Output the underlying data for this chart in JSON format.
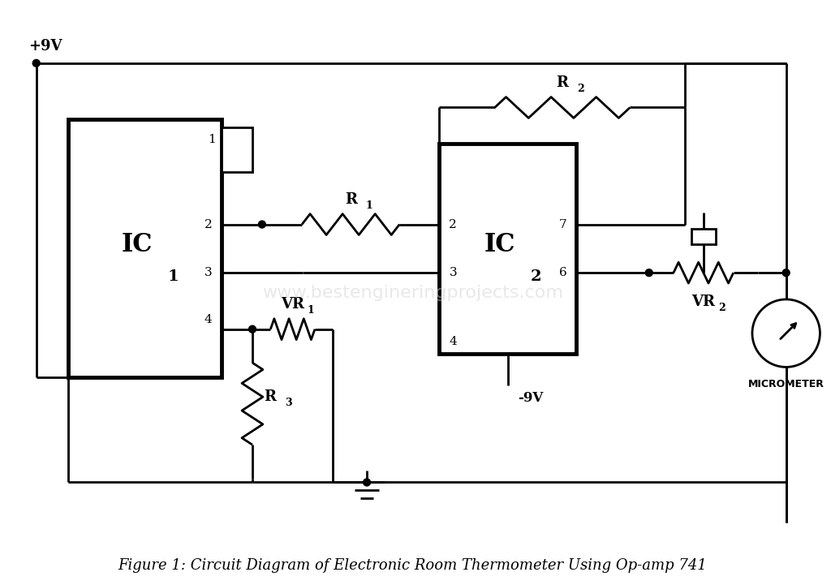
{
  "title": "Figure 1: Circuit Diagram of Electronic Room Thermometer Using Op-amp 741",
  "watermark": "www.bestengineringprojects.com",
  "bg_color": "#ffffff",
  "line_color": "#000000",
  "lw": 2.0,
  "lw_thick": 3.5,
  "fig_width": 10.24,
  "fig_height": 7.21,
  "plus9v_label": "+9V",
  "minus9v_label": "-9V",
  "ic1_label": "IC",
  "ic1_sub": "1",
  "ic2_label": "IC",
  "ic2_sub": "2",
  "r1_label": "R",
  "r1_sub": "1",
  "r2_label": "R",
  "r2_sub": "2",
  "r3_label": "R",
  "r3_sub": "3",
  "vr1_label": "VR",
  "vr1_sub": "1",
  "vr2_label": "VR",
  "vr2_sub": "2",
  "micrometer_label": "MICROMETER"
}
